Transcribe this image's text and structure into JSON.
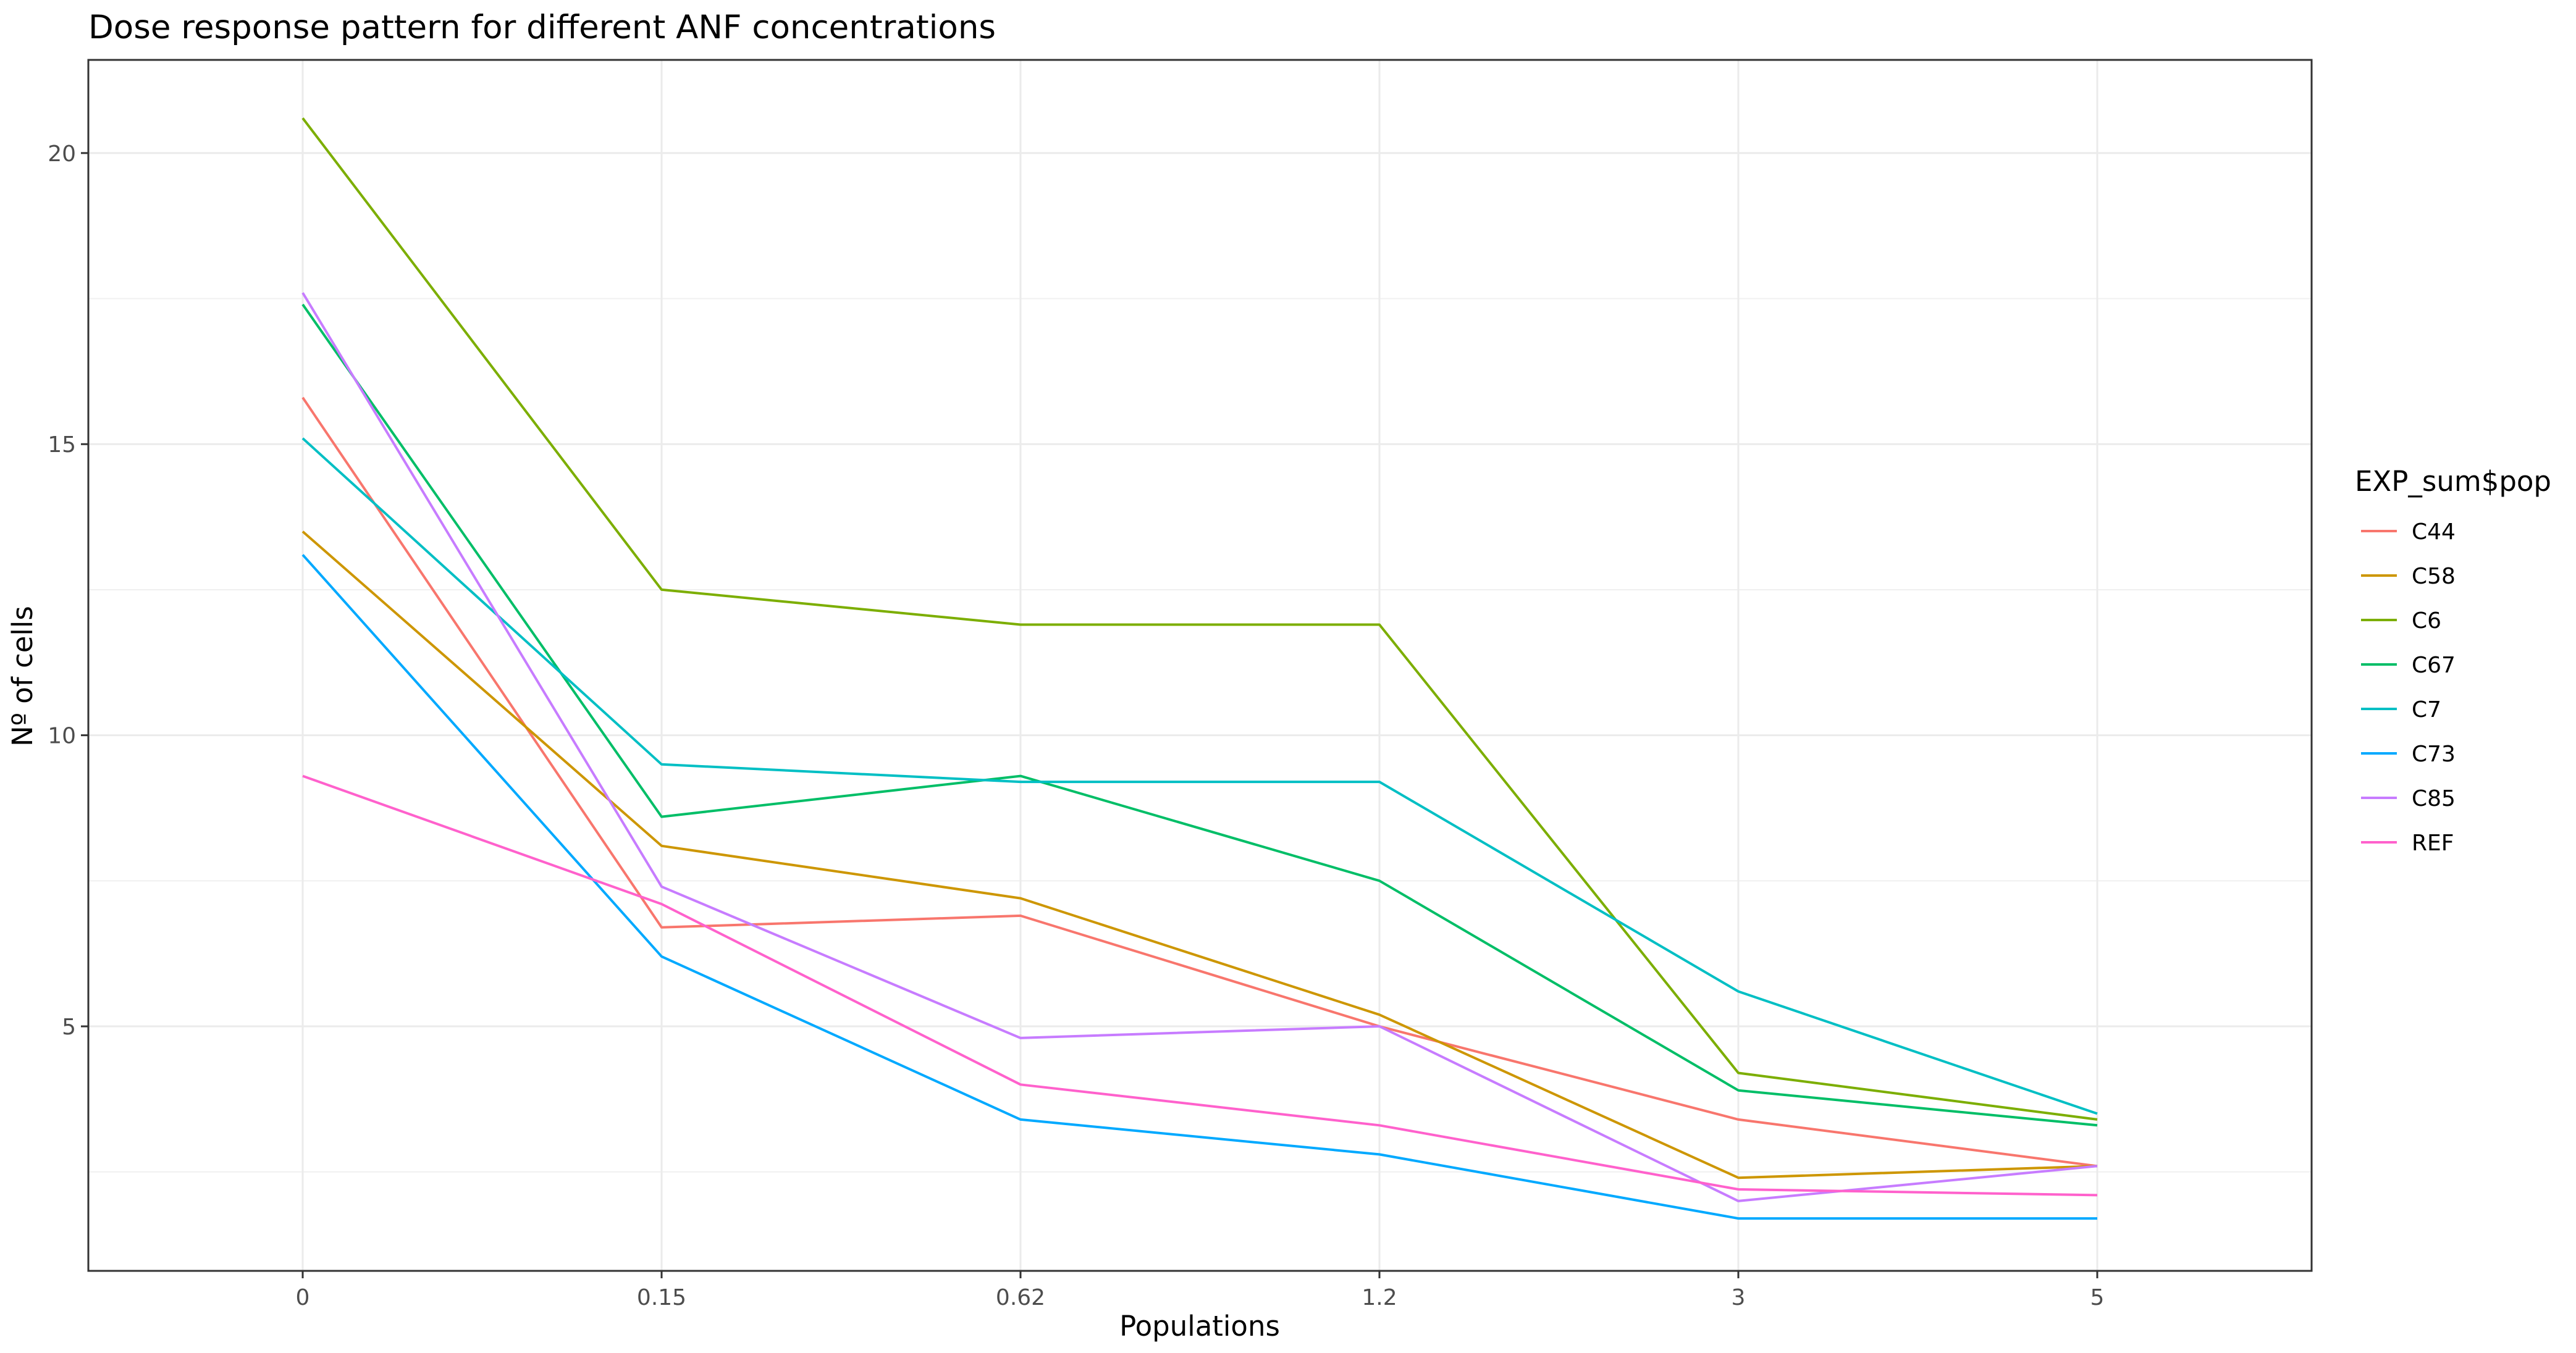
{
  "chart_data": {
    "type": "line",
    "title": "Dose response pattern for different ANF concentrations",
    "xlabel": "Populations",
    "ylabel": "Nº of cells",
    "categories": [
      "0",
      "0.15",
      "0.62",
      "1.2",
      "3",
      "5"
    ],
    "yticks": [
      5,
      10,
      15,
      20
    ],
    "ylim": [
      0.8,
      21.6
    ],
    "grid": true,
    "legend": {
      "title": "EXP_sum$pop",
      "placement": "right"
    },
    "series": [
      {
        "name": "C44",
        "color": "#F8766D",
        "values": [
          15.8,
          6.7,
          6.9,
          5.0,
          3.4,
          2.6
        ]
      },
      {
        "name": "C58",
        "color": "#CD9600",
        "values": [
          13.5,
          8.1,
          7.2,
          5.2,
          2.4,
          2.6
        ]
      },
      {
        "name": "C6",
        "color": "#7CAE00",
        "values": [
          20.6,
          12.5,
          11.9,
          11.9,
          4.2,
          3.4
        ]
      },
      {
        "name": "C67",
        "color": "#00BE67",
        "values": [
          17.4,
          8.6,
          9.3,
          7.5,
          3.9,
          3.3
        ]
      },
      {
        "name": "C7",
        "color": "#00BFC4",
        "values": [
          15.1,
          9.5,
          9.2,
          9.2,
          5.6,
          3.5
        ]
      },
      {
        "name": "C73",
        "color": "#00A9FF",
        "values": [
          13.1,
          6.2,
          3.4,
          2.8,
          1.7,
          1.7
        ]
      },
      {
        "name": "C85",
        "color": "#C77CFF",
        "values": [
          17.6,
          7.4,
          4.8,
          5.0,
          2.0,
          2.6
        ]
      },
      {
        "name": "REF",
        "color": "#FF61CC",
        "values": [
          9.3,
          7.1,
          4.0,
          3.3,
          2.2,
          2.1
        ]
      }
    ]
  }
}
